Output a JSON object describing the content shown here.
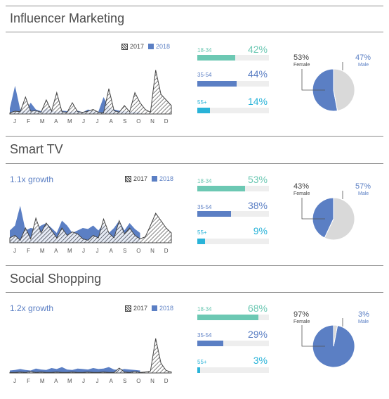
{
  "months": [
    "J",
    "F",
    "M",
    "A",
    "M",
    "J",
    "J",
    "A",
    "S",
    "O",
    "N",
    "D"
  ],
  "legend": {
    "y2017": "2017",
    "y2018": "2018"
  },
  "colors": {
    "y2018": "#5b7fc4",
    "line2017": "#444444",
    "age_18_34": "#6cc8b3",
    "age_35_54": "#5b7fc4",
    "age_55_plus": "#29b3d8",
    "female": "#5b7fc4",
    "male": "#d9d9d9"
  },
  "sections": [
    {
      "title": "Influencer Marketing",
      "growth": "",
      "ages": [
        {
          "label": "18-34",
          "value": "42%",
          "fraction": 0.42
        },
        {
          "label": "35-54",
          "value": "44%",
          "fraction": 0.44
        },
        {
          "label": "55+",
          "value": "14%",
          "fraction": 0.14
        }
      ],
      "gender": {
        "female_value": "53%",
        "female_label": "Female",
        "female_fraction": 0.53,
        "male_value": "47%",
        "male_label": "Male",
        "male_fraction": 0.47
      }
    },
    {
      "title": "Smart TV",
      "growth": "1.1x growth",
      "ages": [
        {
          "label": "18-34",
          "value": "53%",
          "fraction": 0.53
        },
        {
          "label": "35-54",
          "value": "38%",
          "fraction": 0.38
        },
        {
          "label": "55+",
          "value": "9%",
          "fraction": 0.09
        }
      ],
      "gender": {
        "female_value": "43%",
        "female_label": "Female",
        "female_fraction": 0.43,
        "male_value": "57%",
        "male_label": "Male",
        "male_fraction": 0.57
      }
    },
    {
      "title": "Social Shopping",
      "growth": "1.2x growth",
      "ages": [
        {
          "label": "18-34",
          "value": "68%",
          "fraction": 0.68
        },
        {
          "label": "35-54",
          "value": "29%",
          "fraction": 0.29
        },
        {
          "label": "55+",
          "value": "3%",
          "fraction": 0.03
        }
      ],
      "gender": {
        "female_value": "97%",
        "female_label": "Female",
        "female_fraction": 0.97,
        "male_value": "3%",
        "male_label": "Male",
        "male_fraction": 0.03
      }
    }
  ],
  "chart_data": [
    {
      "type": "area",
      "title": "Influencer Marketing",
      "ylim": [
        0,
        100
      ],
      "series": [
        {
          "name": "2017",
          "values": [
            2,
            5,
            4,
            30,
            5,
            6,
            3,
            25,
            5,
            38,
            4,
            3,
            20,
            4,
            3,
            5,
            8,
            3,
            2,
            45,
            6,
            3,
            15,
            4,
            38,
            20,
            8,
            3,
            78,
            35,
            25,
            15
          ]
        },
        {
          "name": "2018",
          "values": [
            10,
            50,
            8,
            5,
            20,
            8,
            5,
            10,
            6,
            4,
            6,
            5,
            4,
            6,
            3,
            8,
            5,
            4,
            30,
            12,
            8,
            6,
            5,
            4,
            4,
            4,
            0,
            0,
            0,
            0,
            0,
            0
          ]
        }
      ]
    },
    {
      "type": "area",
      "title": "Smart TV",
      "ylim": [
        0,
        100
      ],
      "series": [
        {
          "name": "2017",
          "values": [
            10,
            15,
            5,
            30,
            8,
            50,
            20,
            40,
            25,
            10,
            30,
            15,
            22,
            18,
            8,
            5,
            15,
            10,
            48,
            20,
            10,
            45,
            18,
            30,
            15,
            8,
            12,
            35,
            60,
            45,
            30,
            20
          ]
        },
        {
          "name": "2018",
          "values": [
            25,
            35,
            75,
            25,
            30,
            28,
            35,
            40,
            30,
            20,
            45,
            35,
            20,
            25,
            30,
            28,
            35,
            25,
            38,
            20,
            30,
            45,
            25,
            40,
            28,
            20,
            0,
            0,
            0,
            0,
            0,
            0
          ]
        }
      ]
    },
    {
      "type": "area",
      "title": "Social Shopping",
      "ylim": [
        0,
        100
      ],
      "series": [
        {
          "name": "2017",
          "values": [
            1,
            1,
            2,
            1,
            3,
            1,
            2,
            1,
            1,
            2,
            1,
            1,
            2,
            1,
            1,
            2,
            1,
            1,
            2,
            1,
            1,
            10,
            2,
            1,
            3,
            1,
            2,
            4,
            70,
            20,
            5,
            2
          ]
        },
        {
          "name": "2018",
          "values": [
            5,
            6,
            8,
            6,
            5,
            9,
            7,
            6,
            10,
            8,
            12,
            7,
            6,
            9,
            8,
            7,
            10,
            8,
            9,
            12,
            7,
            6,
            8,
            7,
            6,
            5,
            0,
            0,
            0,
            0,
            0,
            0
          ]
        }
      ]
    }
  ]
}
